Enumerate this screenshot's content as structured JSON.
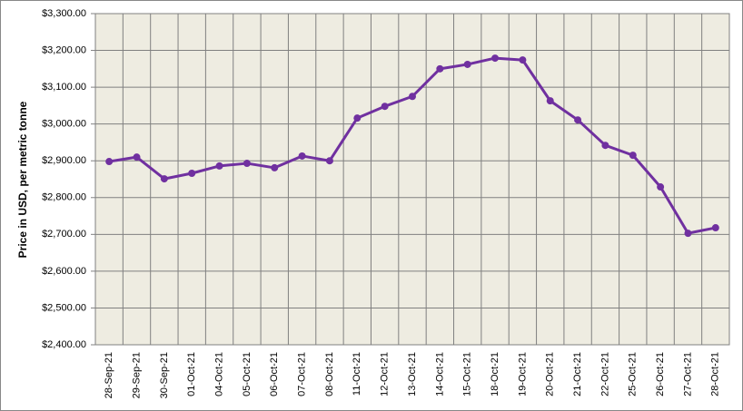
{
  "chart_data": {
    "type": "line",
    "y_label": "Price in USD, per metric tonne",
    "categories": [
      "28-Sep-21",
      "29-Sep-21",
      "30-Sep-21",
      "01-Oct-21",
      "04-Oct-21",
      "05-Oct-21",
      "06-Oct-21",
      "07-Oct-21",
      "08-Oct-21",
      "11-Oct-21",
      "12-Oct-21",
      "13-Oct-21",
      "14-Oct-21",
      "15-Oct-21",
      "18-Oct-21",
      "19-Oct-21",
      "20-Oct-21",
      "21-Oct-21",
      "22-Oct-21",
      "25-Oct-21",
      "26-Oct-21",
      "27-Oct-21",
      "28-Oct-21"
    ],
    "values": [
      2898,
      2910,
      2851,
      2866,
      2886,
      2893,
      2881,
      2913,
      2900,
      3016,
      3048,
      3075,
      3150,
      3162,
      3179,
      3174,
      3063,
      3011,
      2942,
      2915,
      2829,
      2703,
      2718
    ],
    "color": "#7030a0",
    "ylim": [
      2400,
      3300
    ],
    "yticks": [
      {
        "value": 2400,
        "label": "$2,400.00"
      },
      {
        "value": 2500,
        "label": "$2,500.00"
      },
      {
        "value": 2600,
        "label": "$2,600.00"
      },
      {
        "value": 2700,
        "label": "$2,700.00"
      },
      {
        "value": 2800,
        "label": "$2,800.00"
      },
      {
        "value": 2900,
        "label": "$2,900.00"
      },
      {
        "value": 3000,
        "label": "$3,000.00"
      },
      {
        "value": 3100,
        "label": "$3,100.00"
      },
      {
        "value": 3200,
        "label": "$3,200.00"
      },
      {
        "value": 3300,
        "label": "$3,300.00"
      }
    ],
    "grid": true
  }
}
